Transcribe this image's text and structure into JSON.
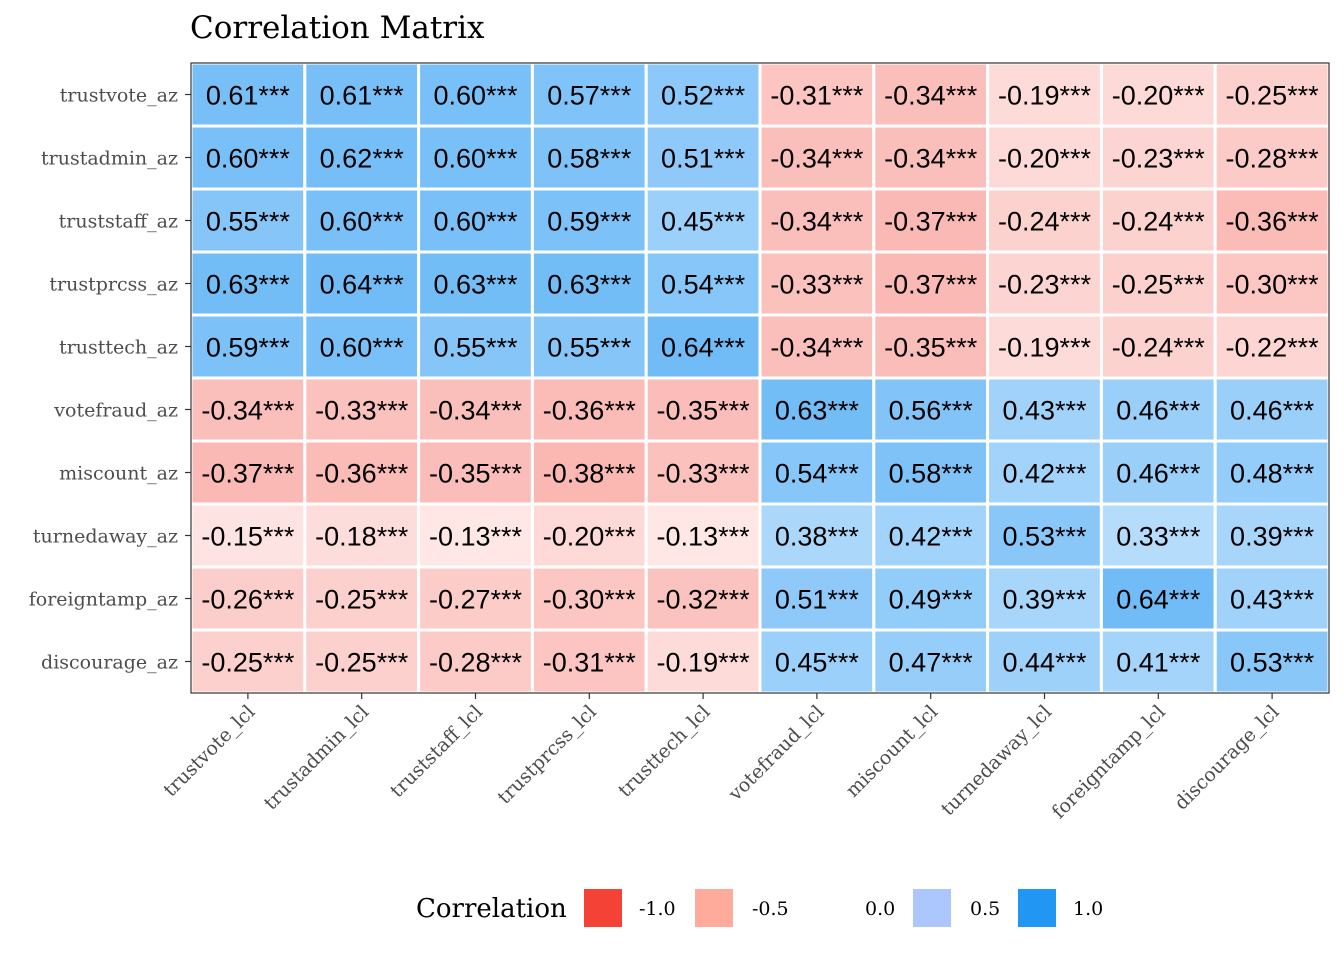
{
  "chart_data": {
    "type": "heatmap",
    "title": "Correlation Matrix",
    "xlabel": "",
    "ylabel": "",
    "rows": [
      "trustvote_az",
      "trustadmin_az",
      "truststaff_az",
      "trustprcss_az",
      "trusttech_az",
      "votefraud_az",
      "miscount_az",
      "turnedaway_az",
      "foreigntamp_az",
      "discourage_az"
    ],
    "columns": [
      "trustvote_lcl",
      "trustadmin_lcl",
      "truststaff_lcl",
      "trustprcss_lcl",
      "trusttech_lcl",
      "votefraud_lcl",
      "miscount_lcl",
      "turnedaway_lcl",
      "foreigntamp_lcl",
      "discourage_lcl"
    ],
    "values": [
      [
        0.61,
        0.61,
        0.6,
        0.57,
        0.52,
        -0.31,
        -0.34,
        -0.19,
        -0.2,
        -0.25
      ],
      [
        0.6,
        0.62,
        0.6,
        0.58,
        0.51,
        -0.34,
        -0.34,
        -0.2,
        -0.23,
        -0.28
      ],
      [
        0.55,
        0.6,
        0.6,
        0.59,
        0.45,
        -0.34,
        -0.37,
        -0.24,
        -0.24,
        -0.36
      ],
      [
        0.63,
        0.64,
        0.63,
        0.63,
        0.54,
        -0.33,
        -0.37,
        -0.23,
        -0.25,
        -0.3
      ],
      [
        0.59,
        0.6,
        0.55,
        0.55,
        0.64,
        -0.34,
        -0.35,
        -0.19,
        -0.24,
        -0.22
      ],
      [
        -0.34,
        -0.33,
        -0.34,
        -0.36,
        -0.35,
        0.63,
        0.56,
        0.43,
        0.46,
        0.46
      ],
      [
        -0.37,
        -0.36,
        -0.35,
        -0.38,
        -0.33,
        0.54,
        0.58,
        0.42,
        0.46,
        0.48
      ],
      [
        -0.15,
        -0.18,
        -0.13,
        -0.2,
        -0.13,
        0.38,
        0.42,
        0.53,
        0.33,
        0.39
      ],
      [
        -0.26,
        -0.25,
        -0.27,
        -0.3,
        -0.32,
        0.51,
        0.49,
        0.39,
        0.64,
        0.43
      ],
      [
        -0.25,
        -0.25,
        -0.28,
        -0.31,
        -0.19,
        0.45,
        0.47,
        0.44,
        0.41,
        0.53
      ]
    ],
    "labels": [
      [
        "0.61***",
        "0.61***",
        "0.60***",
        "0.57***",
        "0.52***",
        "-0.31***",
        "-0.34***",
        "-0.19***",
        "-0.20***",
        "-0.25***"
      ],
      [
        "0.60***",
        "0.62***",
        "0.60***",
        "0.58***",
        "0.51***",
        "-0.34***",
        "-0.34***",
        "-0.20***",
        "-0.23***",
        "-0.28***"
      ],
      [
        "0.55***",
        "0.60***",
        "0.60***",
        "0.59***",
        "0.45***",
        "-0.34***",
        "-0.37***",
        "-0.24***",
        "-0.24***",
        "-0.36***"
      ],
      [
        "0.63***",
        "0.64***",
        "0.63***",
        "0.63***",
        "0.54***",
        "-0.33***",
        "-0.37***",
        "-0.23***",
        "-0.25***",
        "-0.30***"
      ],
      [
        "0.59***",
        "0.60***",
        "0.55***",
        "0.55***",
        "0.64***",
        "-0.34***",
        "-0.35***",
        "-0.19***",
        "-0.24***",
        "-0.22***"
      ],
      [
        "-0.34***",
        "-0.33***",
        "-0.34***",
        "-0.36***",
        "-0.35***",
        "0.63***",
        "0.56***",
        "0.43***",
        "0.46***",
        "0.46***"
      ],
      [
        "-0.37***",
        "-0.36***",
        "-0.35***",
        "-0.38***",
        "-0.33***",
        "0.54***",
        "0.58***",
        "0.42***",
        "0.46***",
        "0.48***"
      ],
      [
        "-0.15***",
        "-0.18***",
        "-0.13***",
        "-0.20***",
        "-0.13***",
        "0.38***",
        "0.42***",
        "0.53***",
        "0.33***",
        "0.39***"
      ],
      [
        "-0.26***",
        "-0.25***",
        "-0.27***",
        "-0.30***",
        "-0.32***",
        "0.51***",
        "0.49***",
        "0.39***",
        "0.64***",
        "0.43***"
      ],
      [
        "-0.25***",
        "-0.25***",
        "-0.28***",
        "-0.31***",
        "-0.19***",
        "0.45***",
        "0.47***",
        "0.44***",
        "0.41***",
        "0.53***"
      ]
    ],
    "color_scale": {
      "low": "#F44336",
      "mid": "#FFFFFF",
      "high": "#2196F3",
      "limits": [
        -1,
        1
      ]
    },
    "legend": {
      "title": "Correlation",
      "position": "bottom",
      "breaks": [
        -1.0,
        -0.5,
        0.0,
        0.5,
        1.0
      ],
      "break_labels": [
        "-1.0",
        "-0.5",
        "0.0",
        "0.5",
        "1.0"
      ],
      "key_colors": [
        "#F44336",
        "#FFAB9C",
        "#FFFFFF",
        "#ABC7FB",
        "#2196F3"
      ]
    },
    "grid": false
  }
}
